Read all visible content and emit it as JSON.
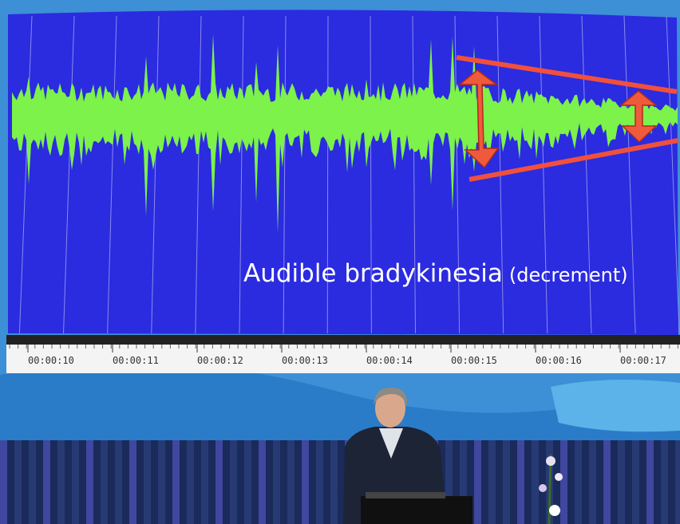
{
  "slide": {
    "caption": "Audible bradykinesia",
    "caption_note": "(decrement)",
    "timeline": [
      "00:00:10",
      "00:00:11",
      "00:00:12",
      "00:00:13",
      "00:00:14",
      "00:00:15",
      "00:00:16",
      "00:00:17"
    ]
  }
}
